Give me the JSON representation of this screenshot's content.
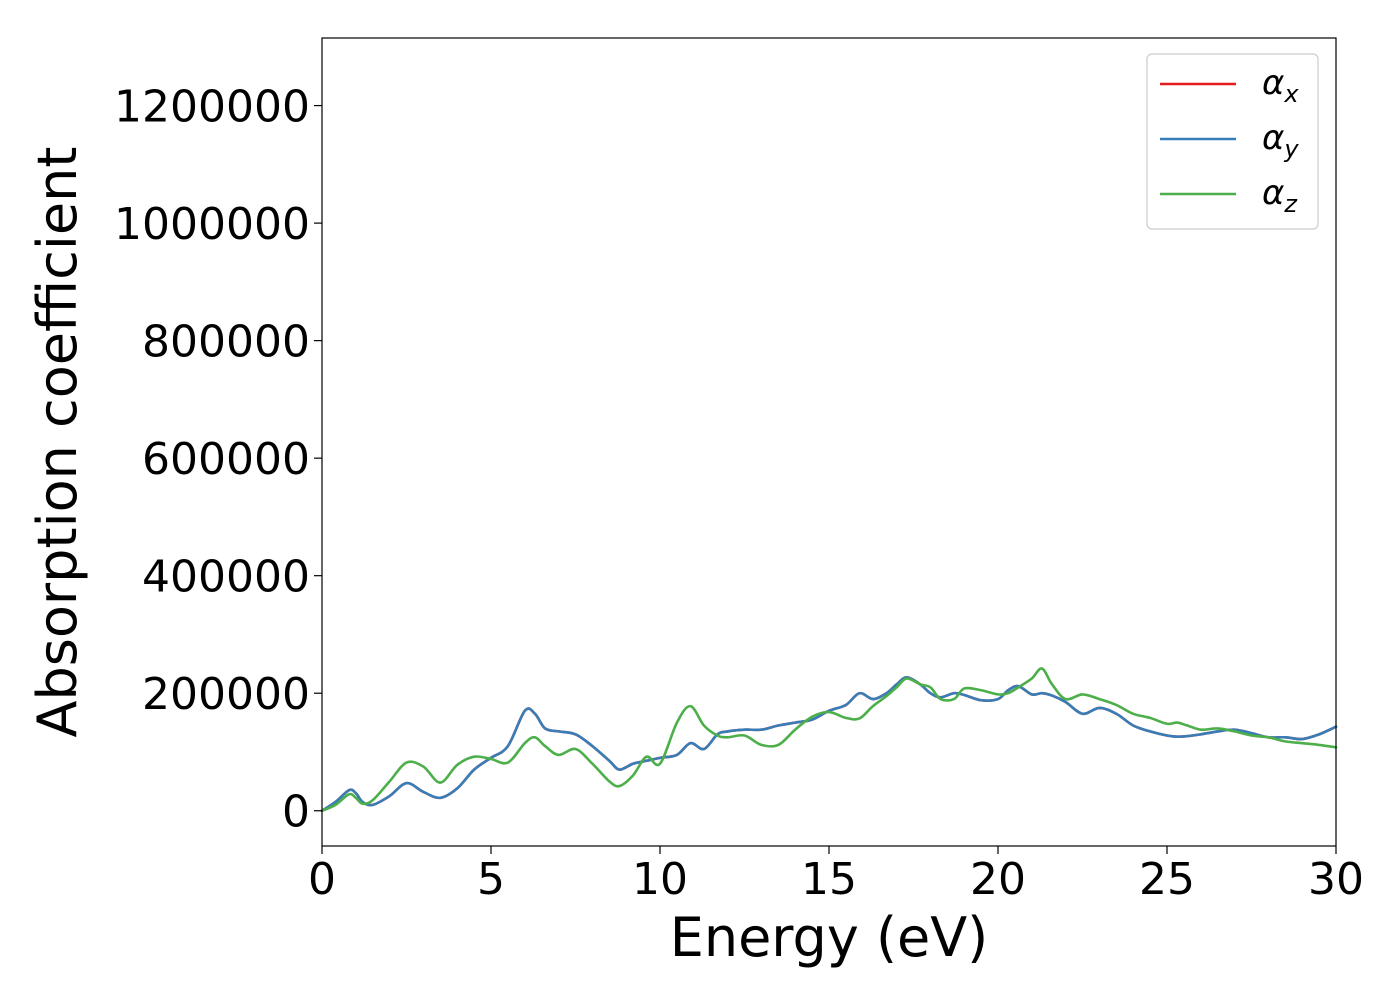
{
  "chart_data": {
    "type": "line",
    "xlabel": "Energy (eV)",
    "ylabel": "Absorption coefficient",
    "xlim": [
      0,
      30
    ],
    "ylim": [
      -60000,
      1315000
    ],
    "xticks": [
      0,
      5,
      10,
      15,
      20,
      25,
      30
    ],
    "xtick_labels": [
      "0",
      "5",
      "10",
      "15",
      "20",
      "25",
      "30"
    ],
    "yticks": [
      0,
      200000,
      400000,
      600000,
      800000,
      1000000,
      1200000
    ],
    "ytick_labels": [
      "0",
      "200000",
      "400000",
      "600000",
      "800000",
      "1000000",
      "1200000"
    ],
    "grid": false,
    "legend_position": "top-right",
    "x": [
      0,
      0.4,
      0.8,
      1.0,
      1.2,
      1.5,
      2.0,
      2.5,
      3.0,
      3.5,
      4.0,
      4.5,
      5.0,
      5.5,
      6.0,
      6.3,
      6.6,
      7.0,
      7.5,
      8.0,
      8.5,
      8.8,
      9.2,
      9.6,
      10.0,
      10.5,
      10.9,
      11.3,
      11.7,
      12.0,
      12.5,
      13.0,
      13.5,
      14.0,
      14.5,
      15.0,
      15.5,
      15.9,
      16.3,
      16.7,
      17.0,
      17.3,
      17.7,
      18.0,
      18.3,
      18.7,
      19.0,
      19.5,
      20.0,
      20.3,
      20.6,
      21.0,
      21.3,
      21.6,
      22.0,
      22.5,
      23.0,
      23.5,
      24.0,
      24.5,
      25.0,
      25.3,
      25.6,
      26.0,
      26.5,
      27.0,
      27.5,
      28.0,
      28.5,
      29.0,
      29.5,
      30.0
    ],
    "series": [
      {
        "name": "αx",
        "label_base": "α",
        "label_sub": "x",
        "color": "#e41a1c",
        "values": [
          0,
          15000,
          35000,
          30000,
          15000,
          10000,
          25000,
          47000,
          32000,
          22000,
          38000,
          70000,
          90000,
          110000,
          170000,
          165000,
          140000,
          135000,
          130000,
          110000,
          85000,
          70000,
          80000,
          85000,
          90000,
          95000,
          115000,
          105000,
          130000,
          135000,
          138000,
          138000,
          145000,
          150000,
          155000,
          170000,
          180000,
          200000,
          190000,
          200000,
          215000,
          227000,
          215000,
          200000,
          193000,
          200000,
          197000,
          188000,
          190000,
          205000,
          212000,
          198000,
          200000,
          196000,
          185000,
          165000,
          175000,
          165000,
          145000,
          135000,
          128000,
          126000,
          127000,
          130000,
          135000,
          138000,
          132000,
          125000,
          125000,
          122000,
          130000,
          143000
        ]
      },
      {
        "name": "αy",
        "label_base": "α",
        "label_sub": "y",
        "color": "#377eb8",
        "values": [
          0,
          15000,
          35000,
          30000,
          15000,
          10000,
          25000,
          47000,
          32000,
          22000,
          38000,
          70000,
          90000,
          110000,
          170000,
          165000,
          140000,
          135000,
          130000,
          110000,
          85000,
          70000,
          80000,
          85000,
          90000,
          95000,
          115000,
          105000,
          130000,
          135000,
          138000,
          138000,
          145000,
          150000,
          155000,
          170000,
          180000,
          200000,
          190000,
          200000,
          215000,
          227000,
          215000,
          200000,
          193000,
          200000,
          197000,
          188000,
          190000,
          205000,
          212000,
          198000,
          200000,
          196000,
          185000,
          165000,
          175000,
          165000,
          145000,
          135000,
          128000,
          126000,
          127000,
          130000,
          135000,
          138000,
          132000,
          125000,
          125000,
          122000,
          130000,
          143000
        ]
      },
      {
        "name": "αz",
        "label_base": "α",
        "label_sub": "z",
        "color": "#4daf4a",
        "values": [
          0,
          10000,
          28000,
          22000,
          12000,
          18000,
          50000,
          82000,
          75000,
          48000,
          78000,
          92000,
          88000,
          82000,
          115000,
          125000,
          110000,
          95000,
          105000,
          80000,
          50000,
          42000,
          60000,
          92000,
          80000,
          150000,
          178000,
          145000,
          128000,
          125000,
          128000,
          112000,
          112000,
          138000,
          160000,
          168000,
          158000,
          157000,
          178000,
          195000,
          210000,
          225000,
          215000,
          210000,
          190000,
          190000,
          208000,
          205000,
          198000,
          200000,
          210000,
          225000,
          242000,
          215000,
          190000,
          198000,
          190000,
          180000,
          165000,
          158000,
          148000,
          150000,
          145000,
          138000,
          140000,
          135000,
          128000,
          125000,
          118000,
          115000,
          112000,
          108000
        ]
      }
    ]
  }
}
